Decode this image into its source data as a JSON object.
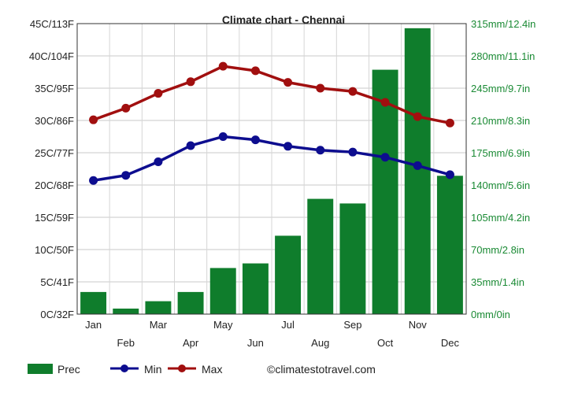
{
  "chart_data": {
    "type": "bar+line",
    "title": "Climate chart - Chennai",
    "categories": [
      "Jan",
      "Feb",
      "Mar",
      "Apr",
      "May",
      "Jun",
      "Jul",
      "Aug",
      "Sep",
      "Oct",
      "Nov",
      "Dec"
    ],
    "left_axis": {
      "ylim": [
        0,
        45
      ],
      "ticks": [
        {
          "value": 0,
          "label": "0C/32F"
        },
        {
          "value": 5,
          "label": "5C/41F"
        },
        {
          "value": 10,
          "label": "10C/50F"
        },
        {
          "value": 15,
          "label": "15C/59F"
        },
        {
          "value": 20,
          "label": "20C/68F"
        },
        {
          "value": 25,
          "label": "25C/77F"
        },
        {
          "value": 30,
          "label": "30C/86F"
        },
        {
          "value": 35,
          "label": "35C/95F"
        },
        {
          "value": 40,
          "label": "40C/104F"
        },
        {
          "value": 45,
          "label": "45C/113F"
        }
      ]
    },
    "right_axis": {
      "ylim": [
        0,
        315
      ],
      "ticks": [
        {
          "value": 0,
          "label": "0mm/0in"
        },
        {
          "value": 35,
          "label": "35mm/1.4in"
        },
        {
          "value": 70,
          "label": "70mm/2.8in"
        },
        {
          "value": 105,
          "label": "105mm/4.2in"
        },
        {
          "value": 140,
          "label": "140mm/5.6in"
        },
        {
          "value": 175,
          "label": "175mm/6.9in"
        },
        {
          "value": 210,
          "label": "210mm/8.3in"
        },
        {
          "value": 245,
          "label": "245mm/9.7in"
        },
        {
          "value": 280,
          "label": "280mm/11.1in"
        },
        {
          "value": 315,
          "label": "315mm/12.4in"
        }
      ]
    },
    "grid": true,
    "legend_position": "bottom",
    "series": [
      {
        "name": "Prec",
        "kind": "bar",
        "axis": "right",
        "color": "#0f7d2c",
        "values": [
          24,
          6,
          14,
          24,
          50,
          55,
          85,
          125,
          120,
          265,
          310,
          150
        ]
      },
      {
        "name": "Min",
        "kind": "line",
        "axis": "left",
        "color": "#0d0d8f",
        "values": [
          20.7,
          21.5,
          23.6,
          26.1,
          27.5,
          27.0,
          26.0,
          25.4,
          25.1,
          24.3,
          23.0,
          21.6
        ]
      },
      {
        "name": "Max",
        "kind": "line",
        "axis": "left",
        "color": "#a10f0f",
        "values": [
          30.1,
          31.9,
          34.2,
          36.0,
          38.4,
          37.7,
          35.9,
          35.0,
          34.5,
          32.8,
          30.6,
          29.6
        ]
      }
    ],
    "credit": "©climatestotravel.com"
  }
}
